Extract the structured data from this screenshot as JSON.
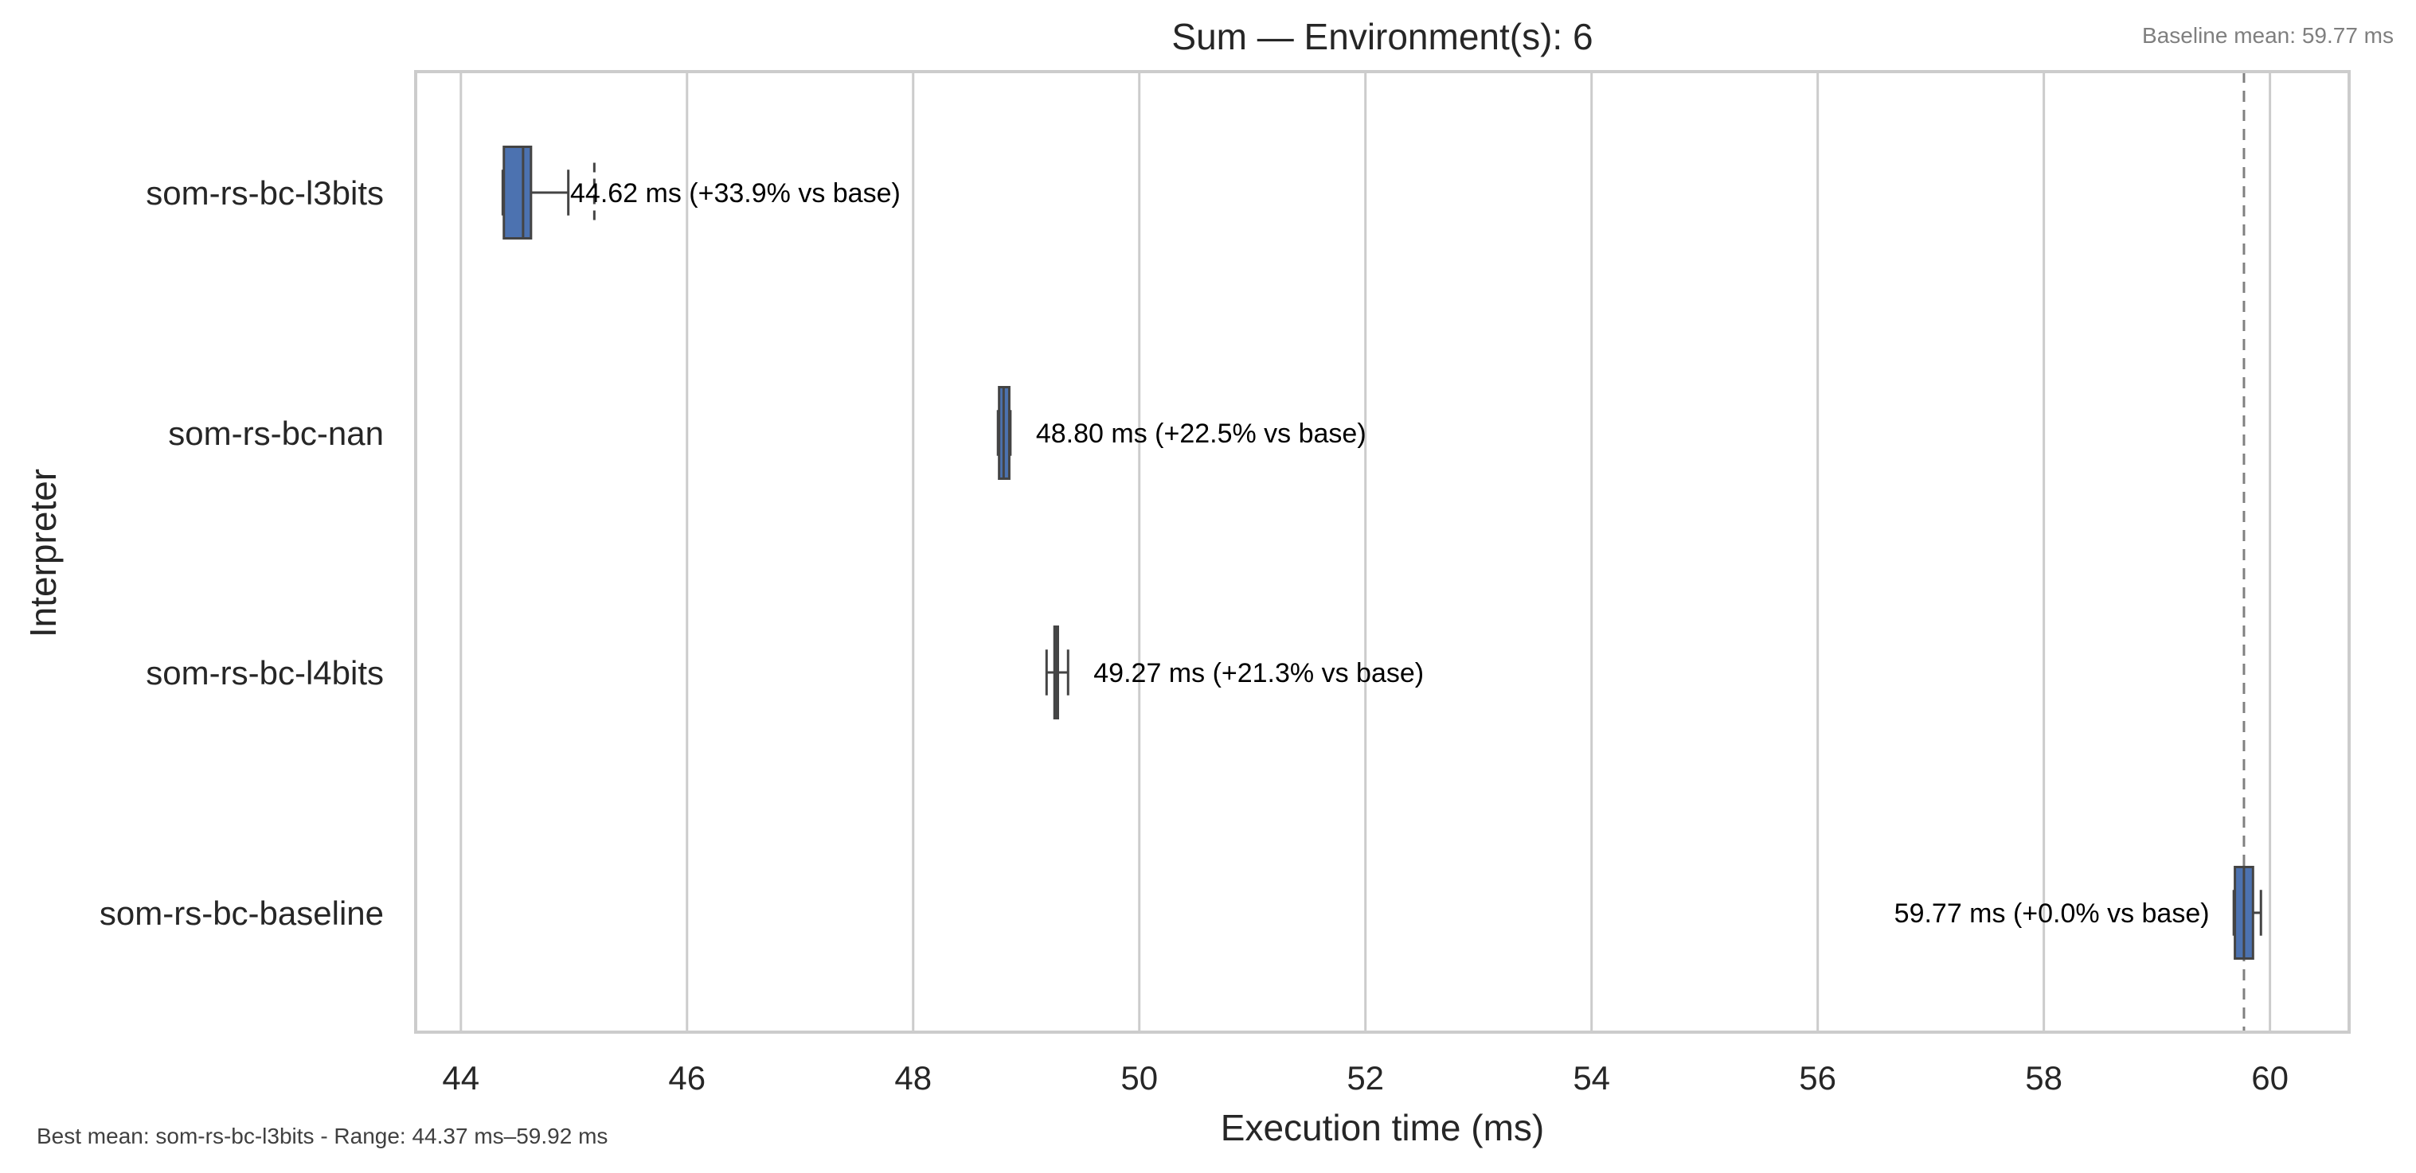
{
  "chart_data": {
    "type": "boxplot",
    "orientation": "horizontal",
    "title": "Sum — Environment(s): 6",
    "xlabel": "Execution time (ms)",
    "ylabel": "Interpreter",
    "xlim": [
      43.6,
      60.7
    ],
    "xticks": [
      44,
      46,
      48,
      50,
      52,
      54,
      56,
      58,
      60
    ],
    "xtick_labels": [
      "44",
      "46",
      "48",
      "50",
      "52",
      "54",
      "56",
      "58",
      "60"
    ],
    "grid": "vertical",
    "box_color": "#4c72b0",
    "reference_line": {
      "x": 59.77,
      "style": "dashed",
      "color": "#808080"
    },
    "categories": [
      "som-rs-bc-l3bits",
      "som-rs-bc-nan",
      "som-rs-bc-l4bits",
      "som-rs-bc-baseline"
    ],
    "series": [
      {
        "category": "som-rs-bc-l3bits",
        "whisker_low": 44.37,
        "q1": 44.38,
        "median": 44.55,
        "q3": 44.62,
        "whisker_high": 44.95,
        "outliers": [
          45.18
        ],
        "annotation": "44.62 ms  (+33.9% vs base)",
        "annotation_side": "right"
      },
      {
        "category": "som-rs-bc-nan",
        "whisker_low": 48.75,
        "q1": 48.76,
        "median": 48.8,
        "q3": 48.85,
        "whisker_high": 48.86,
        "outliers": [],
        "annotation": "48.80 ms  (+22.5% vs base)",
        "annotation_side": "right"
      },
      {
        "category": "som-rs-bc-l4bits",
        "whisker_low": 49.18,
        "q1": 49.25,
        "median": 49.27,
        "q3": 49.28,
        "whisker_high": 49.37,
        "outliers": [],
        "annotation": "49.27 ms  (+21.3% vs base)",
        "annotation_side": "right"
      },
      {
        "category": "som-rs-bc-baseline",
        "whisker_low": 59.68,
        "q1": 59.69,
        "median": 59.77,
        "q3": 59.85,
        "whisker_high": 59.92,
        "outliers": [],
        "annotation": "59.77 ms  (+0.0% vs base)",
        "annotation_side": "left"
      }
    ],
    "notes": {
      "baseline": "Baseline mean: 59.77 ms",
      "footer": "Best mean: som-rs-bc-l3bits - Range: 44.37 ms–59.92 ms"
    }
  }
}
